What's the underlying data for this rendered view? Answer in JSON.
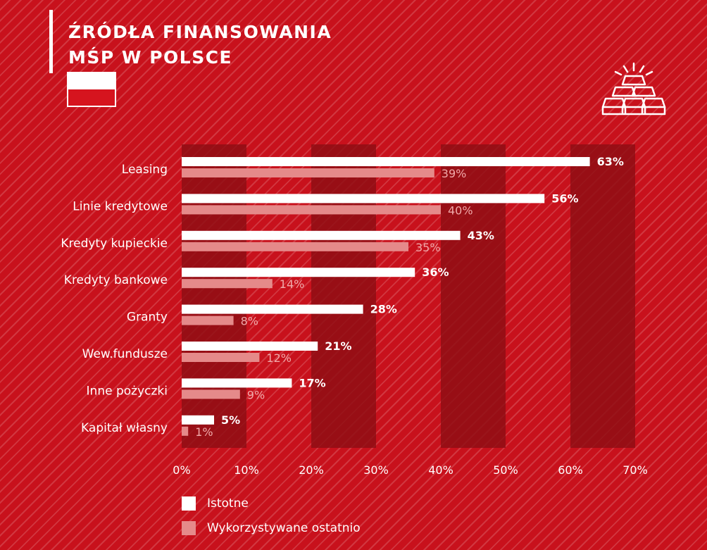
{
  "header": {
    "title_line1": "ŹRÓDŁA FINANSOWANIA",
    "title_line2": "MŚP W POLSCE"
  },
  "colors": {
    "background": "#c8111c",
    "bar_primary": "#ffffff",
    "bar_secondary": "#e58a8a",
    "band": "#8e0d13"
  },
  "chart_data": {
    "type": "bar",
    "orientation": "horizontal",
    "categories": [
      "Leasing",
      "Linie kredytowe",
      "Kredyty kupieckie",
      "Kredyty bankowe",
      "Granty",
      "Wew.fundusze",
      "Inne pożyczki",
      "Kapitał własny"
    ],
    "series": [
      {
        "name": "Istotne",
        "values": [
          63,
          56,
          43,
          36,
          28,
          21,
          17,
          5
        ]
      },
      {
        "name": "Wykorzystywane ostatnio",
        "values": [
          39,
          40,
          35,
          14,
          8,
          12,
          9,
          1
        ]
      }
    ],
    "value_suffix": "%",
    "xlim": [
      0,
      70
    ],
    "xticks": [
      "0%",
      "10%",
      "20%",
      "30%",
      "40%",
      "50%",
      "60%",
      "70%"
    ],
    "legend_position": "bottom-left"
  },
  "legend": {
    "items": [
      {
        "label": "Istotne"
      },
      {
        "label": "Wykorzystywane ostatnio"
      }
    ]
  }
}
